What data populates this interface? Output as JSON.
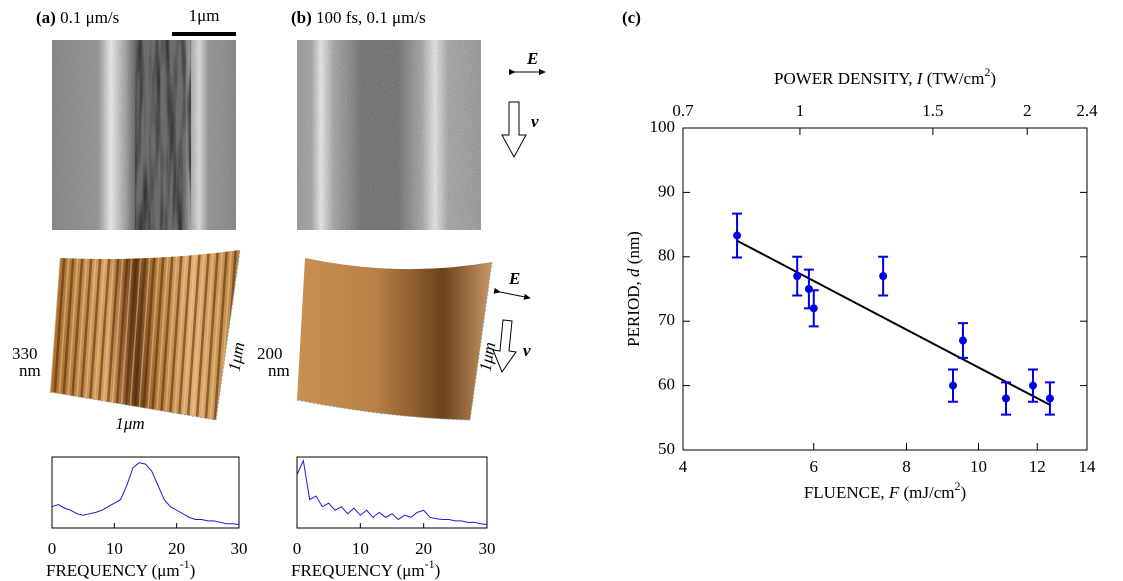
{
  "panels": {
    "a": {
      "label": "(a)",
      "caption": "0.1 μm/s",
      "scale_bar": "1μm",
      "height": "330",
      "height_unit": "nm",
      "side": "1μm",
      "base": "1μm"
    },
    "b": {
      "label": "(b)",
      "caption": "100 fs, 0.1 μm/s",
      "height": "200",
      "height_unit": "nm",
      "side": "1μm"
    },
    "c": {
      "label": "(c)"
    },
    "field": "E",
    "velocity": "v"
  },
  "chart_data": [
    {
      "type": "scatter",
      "xlabel": [
        "FLUENCE, ",
        "F",
        " (mJ/cm",
        "2",
        ")"
      ],
      "ylabel": [
        "PERIOD, ",
        "d",
        " (nm)"
      ],
      "x2label": [
        "POWER DENSITY, ",
        "I",
        " (TW/cm",
        "2",
        ")"
      ],
      "xscale": "log",
      "xlim": [
        4,
        14
      ],
      "xticks": [
        4,
        6,
        8,
        10,
        12,
        14
      ],
      "x2lim": [
        0.7,
        2.4
      ],
      "x2ticks": [
        0.7,
        1,
        1.5,
        2,
        2.4
      ],
      "ylim": [
        50,
        100
      ],
      "yticks": [
        50,
        60,
        70,
        80,
        90,
        100
      ],
      "color": "#0000e6",
      "points": {
        "x": [
          4.73,
          5.7,
          5.91,
          6.0,
          7.44,
          9.24,
          9.53,
          10.89,
          11.84,
          12.48
        ],
        "values": [
          83.3,
          77,
          75,
          72,
          77,
          60,
          67,
          58,
          60,
          58
        ],
        "errors": [
          3.4,
          3,
          3,
          2.8,
          3,
          2.5,
          2.7,
          2.5,
          2.5,
          2.5
        ]
      },
      "fit": {
        "x": [
          4.73,
          12.48
        ],
        "values": [
          82.5,
          57
        ],
        "color": "#000000"
      }
    },
    {
      "type": "line",
      "xlabel": [
        "FREQUENCY (μm",
        "-1",
        ")"
      ],
      "xlim": [
        0,
        30
      ],
      "xticks": [
        0,
        10,
        20,
        30
      ],
      "ylim": [
        0,
        1
      ],
      "color": "#1a1adb",
      "x": [
        0,
        1,
        2,
        3,
        4,
        5,
        6,
        7,
        8,
        9,
        10,
        11,
        12,
        13,
        14,
        15,
        16,
        17,
        18,
        19,
        20,
        21,
        22,
        23,
        24,
        25,
        26,
        27,
        28,
        29,
        30
      ],
      "values": [
        0.3,
        0.33,
        0.28,
        0.25,
        0.2,
        0.18,
        0.2,
        0.22,
        0.25,
        0.3,
        0.35,
        0.4,
        0.6,
        0.85,
        0.92,
        0.9,
        0.8,
        0.6,
        0.4,
        0.3,
        0.25,
        0.2,
        0.15,
        0.12,
        0.12,
        0.1,
        0.1,
        0.08,
        0.06,
        0.06,
        0.05
      ]
    },
    {
      "type": "line",
      "xlabel": [
        "FREQUENCY (μm",
        "-1",
        ")"
      ],
      "xlim": [
        0,
        30
      ],
      "xticks": [
        0,
        10,
        20,
        30
      ],
      "ylim": [
        0,
        1
      ],
      "color": "#1a1adb",
      "x": [
        0,
        1,
        2,
        3,
        4,
        5,
        6,
        7,
        8,
        9,
        10,
        11,
        12,
        13,
        14,
        15,
        16,
        17,
        18,
        19,
        20,
        21,
        22,
        23,
        24,
        25,
        26,
        27,
        28,
        29,
        30
      ],
      "values": [
        0.75,
        0.95,
        0.4,
        0.45,
        0.3,
        0.35,
        0.25,
        0.3,
        0.2,
        0.28,
        0.18,
        0.25,
        0.15,
        0.22,
        0.15,
        0.2,
        0.12,
        0.18,
        0.15,
        0.22,
        0.25,
        0.15,
        0.13,
        0.12,
        0.12,
        0.1,
        0.1,
        0.08,
        0.08,
        0.06,
        0.05
      ]
    }
  ]
}
